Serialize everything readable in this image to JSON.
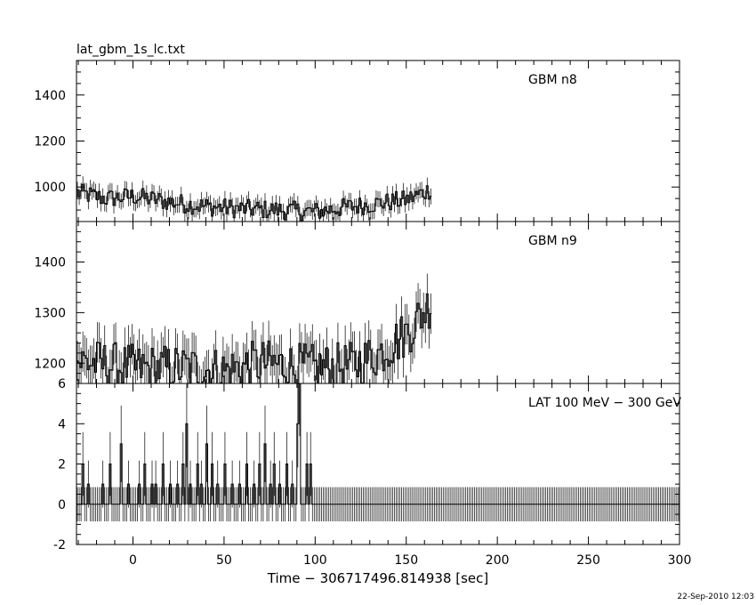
{
  "chart_data": {
    "type": "line",
    "file_title": "lat_gbm_1s_lc.txt",
    "xlabel": "Time − 306717496.814938 [sec]",
    "xlim": [
      -31,
      300
    ],
    "x_ticks": [
      0,
      50,
      100,
      150,
      200,
      250,
      300
    ],
    "timestamp": "22-Sep-2010 12:03",
    "panels": [
      {
        "name": "GBM n8",
        "ylim": [
          850,
          1550
        ],
        "y_ticks": [
          1000,
          1200,
          1400
        ],
        "x_range": [
          -31,
          163
        ],
        "baseline": 940,
        "error": 35,
        "profile": [
          [
            -31,
            975
          ],
          [
            -15,
            950
          ],
          [
            0,
            960
          ],
          [
            20,
            935
          ],
          [
            40,
            915
          ],
          [
            60,
            905
          ],
          [
            80,
            900
          ],
          [
            100,
            893
          ],
          [
            115,
            910
          ],
          [
            130,
            925
          ],
          [
            150,
            945
          ],
          [
            163,
            990
          ]
        ]
      },
      {
        "name": "GBM n9",
        "ylim": [
          1160,
          1480
        ],
        "y_ticks": [
          1200,
          1300,
          1400
        ],
        "x_range": [
          -31,
          163
        ],
        "baseline": 1190,
        "error": 40,
        "profile": [
          [
            -31,
            1205
          ],
          [
            0,
            1190
          ],
          [
            30,
            1190
          ],
          [
            50,
            1185
          ],
          [
            70,
            1200
          ],
          [
            100,
            1190
          ],
          [
            120,
            1195
          ],
          [
            135,
            1220
          ],
          [
            150,
            1260
          ],
          [
            163,
            1320
          ]
        ]
      },
      {
        "name": "LAT 100 MeV − 300 GeV",
        "ylim": [
          -2,
          6
        ],
        "y_ticks": [
          -2,
          0,
          2,
          4,
          6
        ],
        "x_range": [
          -31,
          300
        ],
        "error": 0.85,
        "events": [
          [
            -28,
            2
          ],
          [
            -25,
            1
          ],
          [
            -17,
            1
          ],
          [
            -13,
            2
          ],
          [
            -7,
            3
          ],
          [
            -3,
            1
          ],
          [
            3,
            1
          ],
          [
            6,
            2
          ],
          [
            10,
            1
          ],
          [
            12,
            1
          ],
          [
            16,
            2
          ],
          [
            20,
            1
          ],
          [
            24,
            1
          ],
          [
            27,
            2
          ],
          [
            29,
            4
          ],
          [
            31,
            1
          ],
          [
            35,
            2
          ],
          [
            37,
            1
          ],
          [
            40,
            3
          ],
          [
            43,
            2
          ],
          [
            46,
            1
          ],
          [
            50,
            2
          ],
          [
            54,
            1
          ],
          [
            58,
            1
          ],
          [
            62,
            2
          ],
          [
            66,
            1
          ],
          [
            69,
            2
          ],
          [
            72,
            3
          ],
          [
            75,
            1
          ],
          [
            77,
            2
          ],
          [
            80,
            1
          ],
          [
            84,
            2
          ],
          [
            87,
            1
          ],
          [
            90,
            4
          ],
          [
            91,
            6
          ],
          [
            95,
            2
          ],
          [
            97,
            2
          ]
        ]
      }
    ]
  }
}
